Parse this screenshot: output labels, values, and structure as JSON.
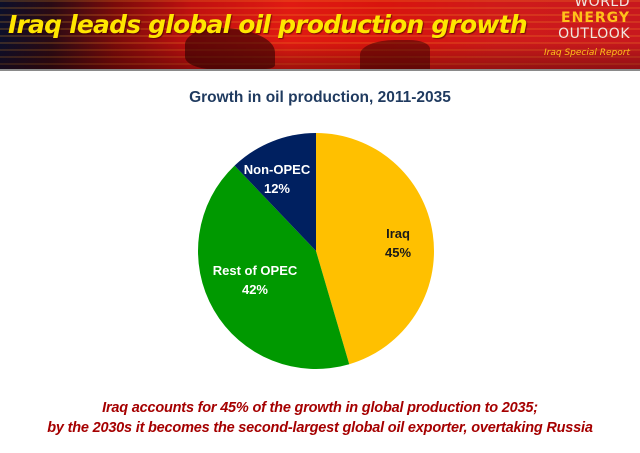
{
  "header": {
    "title": "Iraq leads global oil production growth",
    "logo": {
      "line1": "WORLD",
      "line2": "ENERGY",
      "line3": "OUTLOOK",
      "line4": "Iraq Special Report"
    }
  },
  "chart": {
    "title": "Growth in oil production, 2011-2035",
    "slices": [
      {
        "label": "Iraq",
        "value_label": "45%",
        "color": "#FFC000"
      },
      {
        "label": "Rest of OPEC",
        "value_label": "42%",
        "color": "#009900"
      },
      {
        "label": "Non-OPEC",
        "value_label": "12%",
        "color": "#002060"
      }
    ]
  },
  "caption": {
    "line1": "Iraq accounts for 45% of the growth in global production to 2035;",
    "line2": "by the 2030s it becomes the second-largest global oil exporter, overtaking Russia"
  },
  "chart_data": {
    "type": "pie",
    "title": "Growth in oil production, 2011-2035",
    "categories": [
      "Iraq",
      "Rest of OPEC",
      "Non-OPEC"
    ],
    "values": [
      45,
      42,
      12
    ],
    "colors": [
      "#FFC000",
      "#009900",
      "#002060"
    ],
    "start_angle": "12 o'clock, clockwise",
    "legend": "none (direct labels)",
    "xlabel": "",
    "ylabel": ""
  }
}
